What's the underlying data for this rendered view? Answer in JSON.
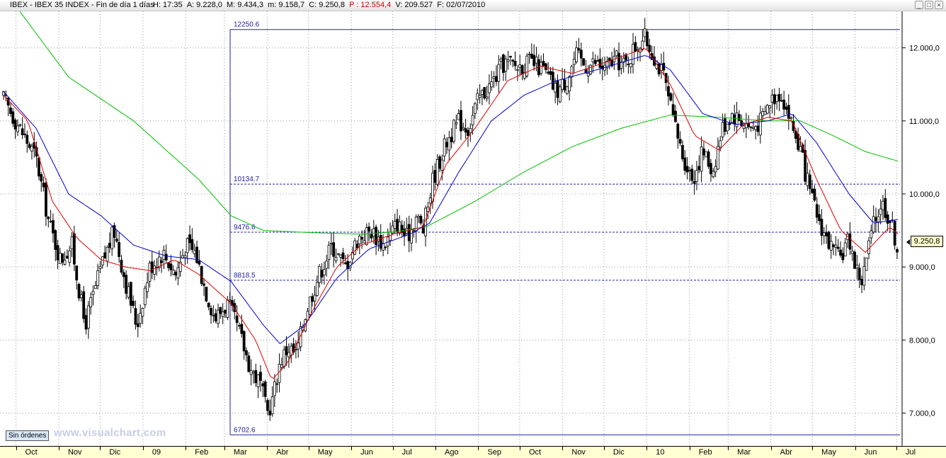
{
  "titlebar": {
    "prefix": "IBEX - IBEX 35 INDEX - Fin de día 1 días",
    "hour": "H: 17:35",
    "open": "A: 9.228,0",
    "high": "M: 9.434,3",
    "low": "m: 9.158,7",
    "close": "C: 9.250,8",
    "p": "P : 12.554,4",
    "volume": "V: 209.527",
    "date": "F: 02/07/2010"
  },
  "window_buttons": {
    "minimize": "_",
    "maximize": "□",
    "close": "×"
  },
  "colors": {
    "candles": "#000000",
    "ma_short": "#e00000",
    "ma_mid": "#0000d0",
    "ma_long": "#00c000",
    "fib_lines": "#2020a0",
    "grid": "#9a9a9a",
    "axis_bg": "#ffffd2"
  },
  "last_price_tag": "9.250,8",
  "sin_ordenes_label": "Sin órdenes",
  "watermark": "www.visualchart.com",
  "chart_data": {
    "type": "candlestick",
    "instrument": "IBEX 35 INDEX",
    "timeframe": "daily",
    "x_range": [
      "2008-09-22",
      "2010-07-02"
    ],
    "month_labels": [
      "Oct",
      "Nov",
      "Dic",
      "09",
      "Feb",
      "Mar",
      "Abr",
      "May",
      "Jun",
      "Jul",
      "Ago",
      "Sep",
      "Oct",
      "Nov",
      "Dic",
      "10",
      "Feb",
      "Mar",
      "Abr",
      "May",
      "Jun",
      "Jul"
    ],
    "y_ticks": [
      "12.000,0",
      "11.000,0",
      "10.000,0",
      "9.000,0",
      "8.000,0",
      "7.000,0"
    ],
    "ylim": [
      6550,
      12500
    ],
    "grid": true,
    "fibonacci_levels": [
      {
        "label": "12250.6",
        "value": 12250.6
      },
      {
        "label": "10134.7",
        "value": 10134.7
      },
      {
        "label": "9476.6",
        "value": 9476.6
      },
      {
        "label": "8818.5",
        "value": 8818.5
      },
      {
        "label": "6702.6",
        "value": 6702.6
      }
    ],
    "close_path": [
      [
        0,
        11300
      ],
      [
        10,
        10900
      ],
      [
        20,
        10500
      ],
      [
        28,
        9600
      ],
      [
        35,
        9100
      ],
      [
        42,
        9300
      ],
      [
        50,
        8200
      ],
      [
        55,
        8600
      ],
      [
        60,
        9000
      ],
      [
        68,
        9500
      ],
      [
        75,
        8800
      ],
      [
        82,
        8200
      ],
      [
        90,
        9000
      ],
      [
        98,
        9200
      ],
      [
        106,
        8900
      ],
      [
        112,
        9300
      ],
      [
        118,
        9200
      ],
      [
        124,
        8700
      ],
      [
        130,
        8300
      ],
      [
        138,
        8500
      ],
      [
        145,
        8100
      ],
      [
        152,
        7600
      ],
      [
        158,
        7400
      ],
      [
        162,
        7000
      ],
      [
        165,
        7150
      ],
      [
        170,
        7700
      ],
      [
        175,
        7900
      ],
      [
        180,
        7800
      ],
      [
        186,
        8400
      ],
      [
        194,
        8900
      ],
      [
        202,
        9300
      ],
      [
        210,
        9000
      ],
      [
        218,
        9400
      ],
      [
        226,
        9500
      ],
      [
        234,
        9300
      ],
      [
        242,
        9600
      ],
      [
        248,
        9400
      ],
      [
        254,
        9700
      ],
      [
        258,
        9500
      ],
      [
        264,
        10200
      ],
      [
        272,
        10700
      ],
      [
        280,
        11000
      ],
      [
        286,
        10900
      ],
      [
        292,
        11300
      ],
      [
        300,
        11500
      ],
      [
        308,
        11800
      ],
      [
        316,
        11750
      ],
      [
        324,
        11800
      ],
      [
        332,
        11700
      ],
      [
        340,
        11400
      ],
      [
        346,
        11550
      ],
      [
        352,
        11900
      ],
      [
        358,
        11750
      ],
      [
        364,
        11800
      ],
      [
        370,
        11700
      ],
      [
        376,
        11850
      ],
      [
        382,
        11750
      ],
      [
        388,
        12000
      ],
      [
        394,
        12150
      ],
      [
        400,
        11900
      ],
      [
        406,
        11600
      ],
      [
        412,
        11000
      ],
      [
        418,
        10500
      ],
      [
        424,
        10200
      ],
      [
        430,
        10600
      ],
      [
        436,
        10300
      ],
      [
        442,
        10900
      ],
      [
        448,
        11100
      ],
      [
        454,
        11000
      ],
      [
        460,
        10900
      ],
      [
        466,
        11000
      ],
      [
        472,
        11300
      ],
      [
        478,
        11400
      ],
      [
        484,
        11000
      ],
      [
        490,
        10600
      ],
      [
        496,
        10000
      ],
      [
        502,
        9600
      ],
      [
        508,
        9300
      ],
      [
        514,
        9100
      ],
      [
        520,
        9400
      ],
      [
        524,
        9000
      ],
      [
        528,
        8800
      ],
      [
        534,
        9500
      ],
      [
        540,
        9900
      ],
      [
        546,
        9600
      ],
      [
        550,
        9250
      ]
    ],
    "ma_short_path": [
      [
        0,
        11350
      ],
      [
        15,
        11000
      ],
      [
        30,
        9900
      ],
      [
        45,
        9400
      ],
      [
        60,
        9100
      ],
      [
        75,
        9000
      ],
      [
        90,
        8950
      ],
      [
        105,
        9100
      ],
      [
        120,
        8900
      ],
      [
        140,
        8500
      ],
      [
        155,
        8000
      ],
      [
        165,
        7450
      ],
      [
        175,
        7700
      ],
      [
        190,
        8400
      ],
      [
        205,
        9000
      ],
      [
        220,
        9300
      ],
      [
        240,
        9450
      ],
      [
        258,
        9550
      ],
      [
        272,
        10400
      ],
      [
        290,
        10900
      ],
      [
        310,
        11550
      ],
      [
        330,
        11750
      ],
      [
        350,
        11650
      ],
      [
        370,
        11800
      ],
      [
        395,
        12000
      ],
      [
        410,
        11500
      ],
      [
        425,
        10800
      ],
      [
        440,
        10600
      ],
      [
        455,
        10950
      ],
      [
        470,
        11050
      ],
      [
        485,
        11000
      ],
      [
        500,
        10200
      ],
      [
        515,
        9500
      ],
      [
        530,
        9200
      ],
      [
        545,
        9550
      ],
      [
        550,
        9450
      ]
    ],
    "ma_mid_path": [
      [
        0,
        11400
      ],
      [
        20,
        10900
      ],
      [
        40,
        10000
      ],
      [
        60,
        9700
      ],
      [
        80,
        9300
      ],
      [
        100,
        9150
      ],
      [
        120,
        9100
      ],
      [
        140,
        8800
      ],
      [
        160,
        8200
      ],
      [
        170,
        7950
      ],
      [
        185,
        8200
      ],
      [
        205,
        8850
      ],
      [
        225,
        9250
      ],
      [
        250,
        9450
      ],
      [
        262,
        9600
      ],
      [
        280,
        10300
      ],
      [
        300,
        11000
      ],
      [
        320,
        11350
      ],
      [
        340,
        11550
      ],
      [
        365,
        11700
      ],
      [
        395,
        11900
      ],
      [
        410,
        11700
      ],
      [
        430,
        11100
      ],
      [
        450,
        10950
      ],
      [
        470,
        11000
      ],
      [
        485,
        11100
      ],
      [
        500,
        10700
      ],
      [
        520,
        10000
      ],
      [
        535,
        9600
      ],
      [
        550,
        9650
      ]
    ],
    "ma_long_path": [
      [
        10,
        12500
      ],
      [
        40,
        11600
      ],
      [
        80,
        11000
      ],
      [
        120,
        10200
      ],
      [
        140,
        9700
      ],
      [
        160,
        9500
      ],
      [
        190,
        9470
      ],
      [
        220,
        9450
      ],
      [
        240,
        9480
      ],
      [
        260,
        9550
      ],
      [
        290,
        9900
      ],
      [
        320,
        10300
      ],
      [
        350,
        10650
      ],
      [
        380,
        10900
      ],
      [
        410,
        11080
      ],
      [
        440,
        11050
      ],
      [
        470,
        11000
      ],
      [
        490,
        11000
      ],
      [
        510,
        10800
      ],
      [
        530,
        10580
      ],
      [
        550,
        10450
      ]
    ]
  }
}
